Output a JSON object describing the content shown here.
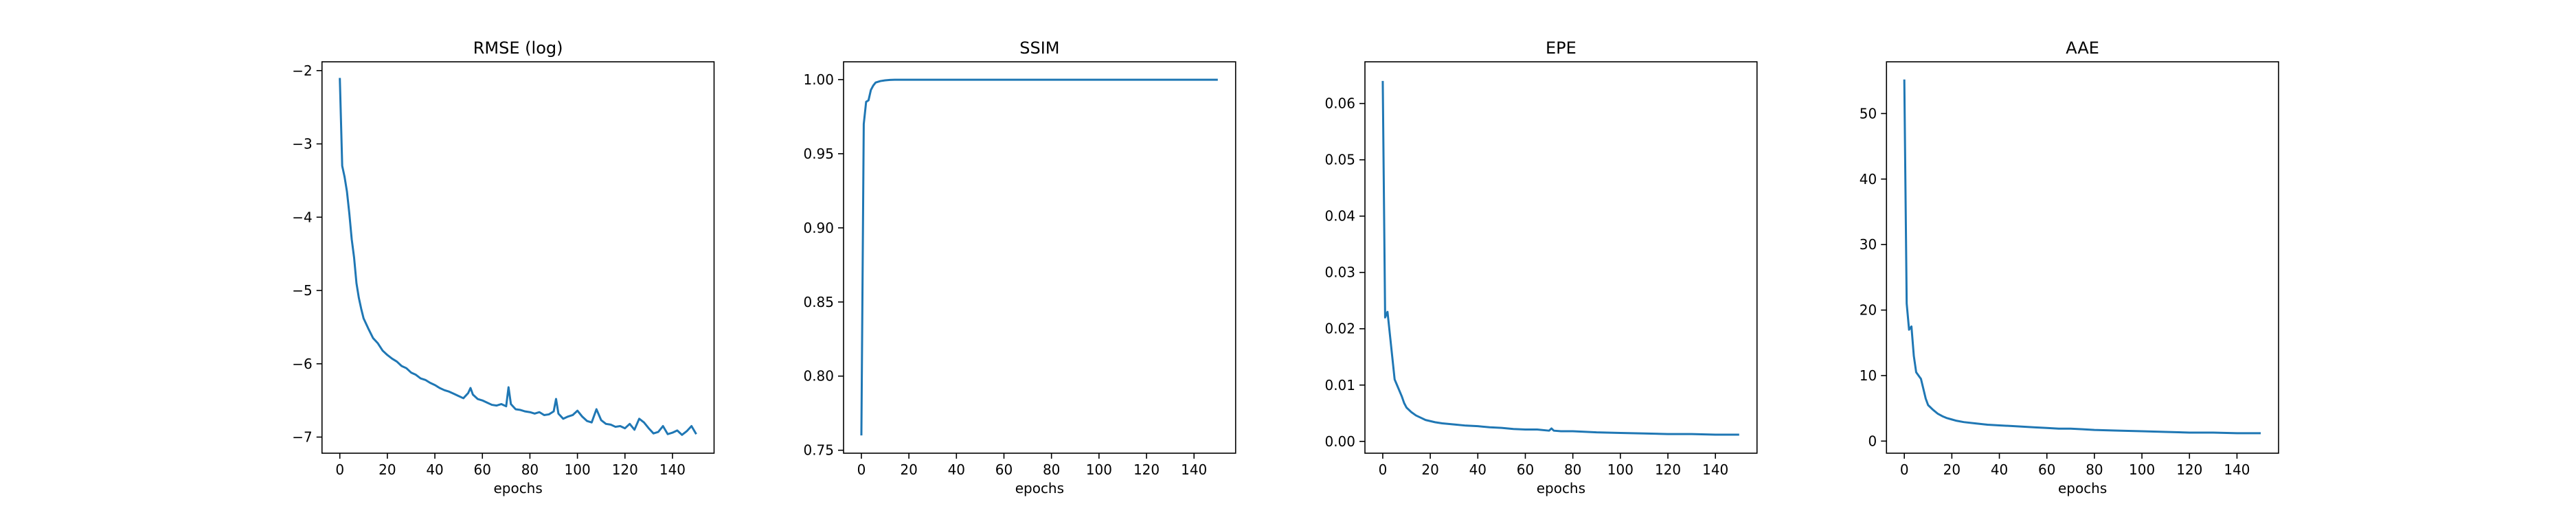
{
  "chart_data": [
    {
      "type": "line",
      "title": "RMSE (log)",
      "xlabel": "epochs",
      "ylabel": "",
      "xlim": [
        -7.5,
        157.5
      ],
      "ylim": [
        -7.22,
        -1.88
      ],
      "xticks": [
        0,
        20,
        40,
        60,
        80,
        100,
        120,
        140
      ],
      "xtick_labels": [
        "0",
        "20",
        "40",
        "60",
        "80",
        "100",
        "120",
        "140"
      ],
      "yticks": [
        -7,
        -6,
        -5,
        -4,
        -3,
        -2
      ],
      "ytick_labels": [
        "−7",
        "−6",
        "−5",
        "−4",
        "−3",
        "−2"
      ],
      "series": [
        {
          "name": "RMSE (log)",
          "color": "#1f77b4",
          "x": [
            0,
            1,
            2,
            3,
            4,
            5,
            6,
            7,
            8,
            9,
            10,
            12,
            14,
            16,
            18,
            20,
            22,
            24,
            26,
            28,
            30,
            32,
            34,
            36,
            38,
            40,
            42,
            44,
            46,
            48,
            50,
            52,
            54,
            55,
            56,
            58,
            60,
            62,
            64,
            66,
            68,
            70,
            71,
            72,
            74,
            76,
            78,
            80,
            82,
            84,
            86,
            88,
            90,
            91,
            92,
            94,
            96,
            98,
            100,
            102,
            104,
            106,
            108,
            110,
            112,
            114,
            116,
            118,
            120,
            122,
            124,
            126,
            128,
            130,
            132,
            134,
            136,
            138,
            140,
            142,
            144,
            146,
            148,
            150
          ],
          "y": [
            -2.1,
            -3.3,
            -3.45,
            -3.65,
            -3.95,
            -4.3,
            -4.55,
            -4.9,
            -5.1,
            -5.25,
            -5.38,
            -5.52,
            -5.65,
            -5.72,
            -5.82,
            -5.88,
            -5.93,
            -5.97,
            -6.03,
            -6.06,
            -6.12,
            -6.15,
            -6.2,
            -6.22,
            -6.26,
            -6.29,
            -6.33,
            -6.36,
            -6.38,
            -6.41,
            -6.44,
            -6.47,
            -6.4,
            -6.33,
            -6.42,
            -6.48,
            -6.5,
            -6.53,
            -6.56,
            -6.57,
            -6.55,
            -6.58,
            -6.32,
            -6.55,
            -6.62,
            -6.63,
            -6.65,
            -6.66,
            -6.68,
            -6.66,
            -6.7,
            -6.69,
            -6.65,
            -6.48,
            -6.68,
            -6.75,
            -6.72,
            -6.7,
            -6.64,
            -6.72,
            -6.78,
            -6.8,
            -6.62,
            -6.77,
            -6.82,
            -6.83,
            -6.86,
            -6.85,
            -6.88,
            -6.82,
            -6.9,
            -6.75,
            -6.8,
            -6.88,
            -6.95,
            -6.93,
            -6.85,
            -6.96,
            -6.94,
            -6.91,
            -6.97,
            -6.92,
            -6.85,
            -6.96
          ]
        }
      ]
    },
    {
      "type": "line",
      "title": "SSIM",
      "xlabel": "epochs",
      "ylabel": "",
      "xlim": [
        -7.5,
        157.5
      ],
      "ylim": [
        0.748,
        1.012
      ],
      "xticks": [
        0,
        20,
        40,
        60,
        80,
        100,
        120,
        140
      ],
      "xtick_labels": [
        "0",
        "20",
        "40",
        "60",
        "80",
        "100",
        "120",
        "140"
      ],
      "yticks": [
        0.75,
        0.8,
        0.85,
        0.9,
        0.95,
        1.0
      ],
      "ytick_labels": [
        "0.75",
        "0.80",
        "0.85",
        "0.90",
        "0.95",
        "1.00"
      ],
      "series": [
        {
          "name": "SSIM",
          "color": "#1f77b4",
          "x": [
            0,
            1,
            2,
            3,
            4,
            5,
            6,
            8,
            10,
            12,
            14,
            16,
            20,
            30,
            40,
            60,
            80,
            100,
            120,
            140,
            150
          ],
          "y": [
            0.76,
            0.97,
            0.985,
            0.986,
            0.993,
            0.996,
            0.998,
            0.999,
            0.9995,
            0.9998,
            0.9999,
            0.9999,
            0.9999,
            0.9999,
            0.9999,
            0.9999,
            0.9999,
            0.9999,
            0.9999,
            0.9999,
            0.9999
          ]
        }
      ]
    },
    {
      "type": "line",
      "title": "EPE",
      "xlabel": "epochs",
      "ylabel": "",
      "xlim": [
        -7.5,
        157.5
      ],
      "ylim": [
        -0.0021,
        0.0674
      ],
      "xticks": [
        0,
        20,
        40,
        60,
        80,
        100,
        120,
        140
      ],
      "xtick_labels": [
        "0",
        "20",
        "40",
        "60",
        "80",
        "100",
        "120",
        "140"
      ],
      "yticks": [
        0.0,
        0.01,
        0.02,
        0.03,
        0.04,
        0.05,
        0.06
      ],
      "ytick_labels": [
        "0.00",
        "0.01",
        "0.02",
        "0.03",
        "0.04",
        "0.05",
        "0.06"
      ],
      "series": [
        {
          "name": "EPE",
          "color": "#1f77b4",
          "x": [
            0,
            1,
            2,
            3,
            4,
            5,
            6,
            7,
            8,
            9,
            10,
            12,
            14,
            16,
            18,
            20,
            22,
            25,
            30,
            35,
            40,
            45,
            50,
            55,
            60,
            65,
            70,
            71,
            72,
            75,
            80,
            90,
            100,
            110,
            120,
            130,
            140,
            150
          ],
          "y": [
            0.064,
            0.022,
            0.023,
            0.019,
            0.015,
            0.011,
            0.01,
            0.009,
            0.008,
            0.0068,
            0.006,
            0.0052,
            0.0046,
            0.0042,
            0.0038,
            0.0036,
            0.0034,
            0.0032,
            0.003,
            0.0028,
            0.0027,
            0.0025,
            0.0024,
            0.0022,
            0.0021,
            0.0021,
            0.0019,
            0.0023,
            0.0019,
            0.0018,
            0.0018,
            0.0016,
            0.0015,
            0.0014,
            0.0013,
            0.0013,
            0.0012,
            0.0012
          ]
        }
      ]
    },
    {
      "type": "line",
      "title": "AAE",
      "xlabel": "epochs",
      "ylabel": "",
      "xlim": [
        -7.5,
        157.5
      ],
      "ylim": [
        -1.85,
        57.9
      ],
      "xticks": [
        0,
        20,
        40,
        60,
        80,
        100,
        120,
        140
      ],
      "xtick_labels": [
        "0",
        "20",
        "40",
        "60",
        "80",
        "100",
        "120",
        "140"
      ],
      "yticks": [
        0,
        10,
        20,
        30,
        40,
        50
      ],
      "ytick_labels": [
        "0",
        "10",
        "20",
        "30",
        "40",
        "50"
      ],
      "series": [
        {
          "name": "AAE",
          "color": "#1f77b4",
          "x": [
            0,
            1,
            2,
            3,
            4,
            5,
            6,
            7,
            8,
            9,
            10,
            12,
            14,
            16,
            18,
            20,
            22,
            25,
            30,
            35,
            40,
            45,
            50,
            55,
            60,
            65,
            70,
            75,
            80,
            90,
            100,
            110,
            120,
            130,
            140,
            145,
            150
          ],
          "y": [
            55.2,
            21,
            17,
            17.5,
            13,
            10.5,
            10,
            9.5,
            8,
            6.5,
            5.5,
            4.8,
            4.2,
            3.8,
            3.5,
            3.3,
            3.1,
            2.9,
            2.7,
            2.5,
            2.4,
            2.3,
            2.2,
            2.1,
            2.0,
            1.9,
            1.9,
            1.8,
            1.7,
            1.6,
            1.5,
            1.4,
            1.3,
            1.3,
            1.2,
            1.2,
            1.2
          ]
        }
      ]
    }
  ]
}
